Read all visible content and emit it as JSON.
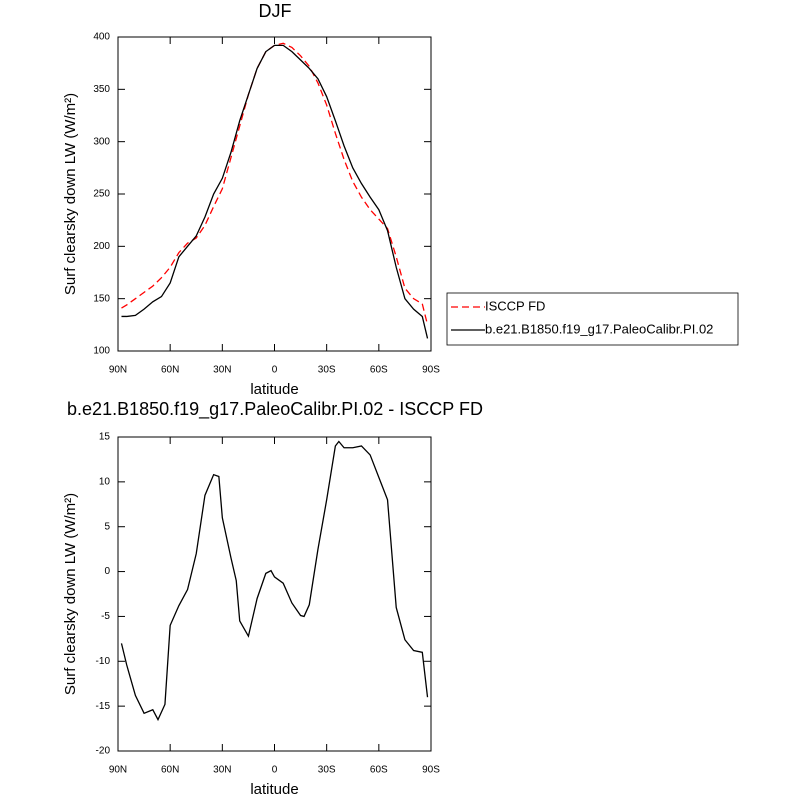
{
  "chart_data": [
    {
      "type": "line",
      "title": "DJF",
      "xlabel": "latitude",
      "ylabel": "Surf clearsky down LW (W/m²)",
      "x": [
        88,
        85,
        80,
        75,
        70,
        65,
        60,
        55,
        50,
        45,
        40,
        35,
        30,
        25,
        20,
        15,
        10,
        5,
        0,
        -5,
        -10,
        -15,
        -20,
        -25,
        -30,
        -35,
        -40,
        -45,
        -50,
        -55,
        -60,
        -65,
        -70,
        -75,
        -80,
        -85,
        -88
      ],
      "series": [
        {
          "name": "ISCCP FD",
          "color": "#ff0000",
          "dashed": true,
          "values": [
            141,
            144,
            150,
            156,
            162,
            170,
            180,
            194,
            203,
            208,
            220,
            238,
            255,
            285,
            315,
            345,
            370,
            386,
            392,
            394,
            390,
            382,
            372,
            356,
            335,
            308,
            283,
            262,
            247,
            235,
            226,
            217,
            190,
            160,
            150,
            145,
            125
          ]
        },
        {
          "name": "b.e21.B1850.f19_g17.PaleoCalibr.PI.02",
          "color": "#000000",
          "dashed": false,
          "values": [
            133,
            133,
            134,
            140,
            147,
            152,
            165,
            190,
            200,
            210,
            228,
            250,
            265,
            290,
            320,
            345,
            370,
            386,
            392,
            392,
            386,
            378,
            370,
            360,
            343,
            320,
            296,
            275,
            260,
            247,
            235,
            215,
            180,
            150,
            140,
            133,
            112
          ]
        }
      ],
      "xlim": [
        90,
        -90
      ],
      "xticks": [
        {
          "value": 90,
          "label": "90N"
        },
        {
          "value": 60,
          "label": "60N"
        },
        {
          "value": 30,
          "label": "30N"
        },
        0,
        {
          "value": -30,
          "label": "30S"
        },
        {
          "value": -60,
          "label": "60S"
        },
        {
          "value": -90,
          "label": "90S"
        }
      ],
      "ylim": [
        100,
        400
      ],
      "yticks": [
        100,
        150,
        200,
        250,
        300,
        350,
        400
      ],
      "legend": "right"
    },
    {
      "type": "line",
      "title": "b.e21.B1850.f19_g17.PaleoCalibr.PI.02 - ISCCP FD",
      "xlabel": "latitude",
      "ylabel": "Surf clearsky down LW (W/m²)",
      "x": [
        88,
        85,
        80,
        75,
        70,
        67,
        63,
        60,
        55,
        50,
        45,
        40,
        35,
        32,
        30,
        25,
        22,
        20,
        15,
        10,
        5,
        2,
        0,
        -5,
        -10,
        -15,
        -17,
        -20,
        -25,
        -30,
        -35,
        -37,
        -40,
        -45,
        -50,
        -55,
        -60,
        -65,
        -70,
        -75,
        -80,
        -85,
        -88
      ],
      "series": [
        {
          "name": "b.e21.B1850.f19_g17.PaleoCalibr.PI.02 - ISCCP FD",
          "color": "#000000",
          "dashed": false,
          "values": [
            -8.0,
            -10.4,
            -13.8,
            -15.8,
            -15.4,
            -16.5,
            -14.8,
            -6.0,
            -3.8,
            -2.0,
            2.0,
            8.5,
            10.8,
            10.6,
            6.0,
            1.5,
            -1.0,
            -5.5,
            -7.2,
            -3.0,
            -0.2,
            0.1,
            -0.6,
            -1.3,
            -3.5,
            -4.9,
            -5.0,
            -3.7,
            2.5,
            8.0,
            14.0,
            14.5,
            13.8,
            13.8,
            14.0,
            13.0,
            10.5,
            8.0,
            -4.0,
            -7.6,
            -8.8,
            -9.0,
            -14.0
          ]
        }
      ],
      "xlim": [
        90,
        -90
      ],
      "xticks": [
        {
          "value": 90,
          "label": "90N"
        },
        {
          "value": 60,
          "label": "60N"
        },
        {
          "value": 30,
          "label": "30N"
        },
        0,
        {
          "value": -30,
          "label": "30S"
        },
        {
          "value": -60,
          "label": "60S"
        },
        {
          "value": -90,
          "label": "90S"
        }
      ],
      "ylim": [
        -20,
        15
      ],
      "yticks": [
        -20,
        -15,
        -10,
        -5,
        0,
        5,
        10,
        15
      ]
    }
  ]
}
